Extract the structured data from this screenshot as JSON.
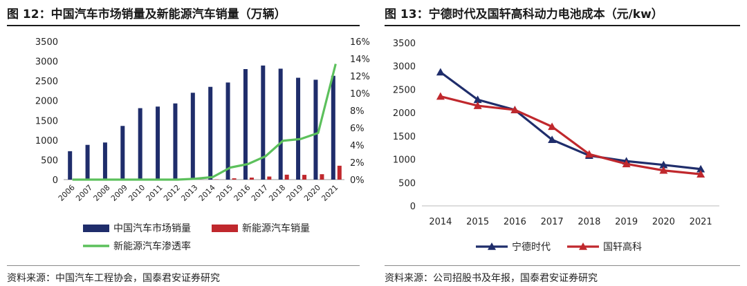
{
  "left_chart": {
    "figure_title": "图 12：中国汽车市场销量及新能源汽车销量（万辆）",
    "source": "资料来源：中国汽车工程协会，国泰君安证券研究"
  },
  "right_chart": {
    "figure_title": "图 13：宁德时代及国轩高科动力电池成本（元/kw）",
    "source": "资料来源：公司招股书及年报，国泰君安证券研究"
  },
  "colors": {
    "navy": "#1f2d6b",
    "red": "#c0282d",
    "green": "#5cc05c"
  },
  "chart_data": [
    {
      "type": "bar",
      "title": "中国汽车市场销量及新能源汽车销量（万辆）",
      "categories": [
        "2006",
        "2007",
        "2008",
        "2009",
        "2010",
        "2011",
        "2012",
        "2013",
        "2014",
        "2015",
        "2016",
        "2017",
        "2018",
        "2019",
        "2020",
        "2021"
      ],
      "series": [
        {
          "name": "中国汽车市场销量",
          "type": "bar",
          "axis": "left",
          "color": "#1f2d6b",
          "values": [
            720,
            880,
            940,
            1360,
            1810,
            1850,
            1930,
            2200,
            2350,
            2460,
            2800,
            2890,
            2810,
            2580,
            2530,
            2630
          ]
        },
        {
          "name": "新能源汽车销量",
          "type": "bar",
          "axis": "left",
          "color": "#c0282d",
          "values": [
            0,
            0,
            0,
            0,
            1,
            1,
            1,
            2,
            7,
            33,
            51,
            78,
            125,
            121,
            137,
            352
          ]
        },
        {
          "name": "新能源汽车渗透率",
          "type": "line",
          "axis": "right",
          "color": "#5cc05c",
          "values": [
            0,
            0,
            0,
            0,
            0,
            0,
            0,
            0.1,
            0.3,
            1.4,
            1.8,
            2.7,
            4.5,
            4.7,
            5.4,
            13.4
          ]
        }
      ],
      "ylim_left": [
        0,
        3500
      ],
      "yticks_left": [
        "0",
        "500",
        "1000",
        "1500",
        "2000",
        "2500",
        "3000",
        "3500"
      ],
      "ylim_right": [
        0,
        16
      ],
      "yticks_right": [
        "0%",
        "2%",
        "4%",
        "6%",
        "8%",
        "10%",
        "12%",
        "14%",
        "16%"
      ],
      "legend": "bottom",
      "grid": false
    },
    {
      "type": "line",
      "title": "宁德时代及国轩高科动力电池成本（元/kw）",
      "categories": [
        "2014",
        "2015",
        "2016",
        "2017",
        "2018",
        "2019",
        "2020",
        "2021"
      ],
      "series": [
        {
          "name": "宁德时代",
          "color": "#1f2d6b",
          "marker": "triangle",
          "values": [
            2870,
            2280,
            2060,
            1420,
            1080,
            960,
            880,
            790
          ]
        },
        {
          "name": "国轩高科",
          "color": "#c0282d",
          "marker": "triangle",
          "values": [
            2350,
            2150,
            2060,
            1700,
            1110,
            900,
            760,
            680
          ]
        }
      ],
      "ylim": [
        0,
        3500
      ],
      "yticks": [
        "0",
        "500",
        "1000",
        "1500",
        "2000",
        "2500",
        "3000",
        "3500"
      ],
      "legend": "bottom",
      "grid": false
    }
  ]
}
